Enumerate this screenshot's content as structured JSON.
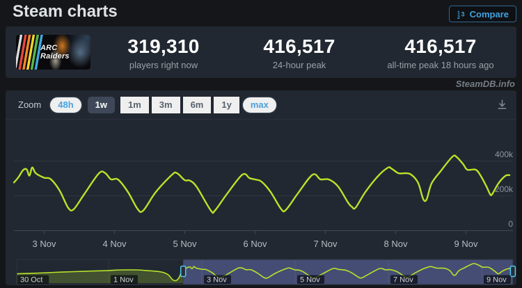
{
  "page": {
    "title": "Steam charts",
    "credit": "SteamDB.info"
  },
  "compare": {
    "label": "Compare",
    "accent_color": "#3fa3e0"
  },
  "stats": {
    "game": "ARC Raiders",
    "game_title_lines": [
      "ARC",
      "Raiders"
    ],
    "items": [
      {
        "value": "319,310",
        "label": "players right now"
      },
      {
        "value": "416,517",
        "label": "24-hour peak"
      },
      {
        "value": "416,517",
        "label": "all-time peak 18 hours ago"
      }
    ]
  },
  "toolbar": {
    "zoom_label": "Zoom",
    "ranges": [
      {
        "label": "48h",
        "state": "link"
      },
      {
        "label": "1w",
        "state": "selected"
      },
      {
        "label": "1m",
        "state": "disabled"
      },
      {
        "label": "3m",
        "state": "disabled"
      },
      {
        "label": "6m",
        "state": "disabled"
      },
      {
        "label": "1y",
        "state": "disabled"
      },
      {
        "label": "max",
        "state": "link"
      }
    ]
  },
  "chart_data": {
    "type": "line",
    "line_color": "#b8e32a",
    "x_unit": "date (November 2025, fractional days)",
    "y_unit": "concurrent players (thousands)",
    "ylim": [
      0,
      450
    ],
    "grid": true,
    "y_ticks": [
      {
        "label": "400k",
        "value": 400
      },
      {
        "label": "200k",
        "value": 200
      },
      {
        "label": "0",
        "value": 0
      }
    ],
    "x_ticks": [
      {
        "label": "3 Nov",
        "day": 3
      },
      {
        "label": "4 Nov",
        "day": 4
      },
      {
        "label": "5 Nov",
        "day": 5
      },
      {
        "label": "6 Nov",
        "day": 6
      },
      {
        "label": "7 Nov",
        "day": 7
      },
      {
        "label": "8 Nov",
        "day": 8
      },
      {
        "label": "9 Nov",
        "day": 9
      }
    ],
    "main_series": [
      [
        2.57,
        277
      ],
      [
        2.63,
        305
      ],
      [
        2.7,
        348
      ],
      [
        2.75,
        352
      ],
      [
        2.79,
        316
      ],
      [
        2.83,
        363
      ],
      [
        2.88,
        330
      ],
      [
        3.0,
        304
      ],
      [
        3.09,
        297
      ],
      [
        3.22,
        230
      ],
      [
        3.34,
        132
      ],
      [
        3.42,
        123
      ],
      [
        3.57,
        210
      ],
      [
        3.78,
        330
      ],
      [
        3.87,
        330
      ],
      [
        3.95,
        295
      ],
      [
        4.05,
        294
      ],
      [
        4.19,
        223
      ],
      [
        4.33,
        124
      ],
      [
        4.41,
        116
      ],
      [
        4.59,
        223
      ],
      [
        4.82,
        322
      ],
      [
        4.89,
        330
      ],
      [
        5.0,
        290
      ],
      [
        5.07,
        288
      ],
      [
        5.17,
        251
      ],
      [
        5.37,
        116
      ],
      [
        5.43,
        116
      ],
      [
        5.6,
        211
      ],
      [
        5.82,
        322
      ],
      [
        5.92,
        302
      ],
      [
        6.0,
        294
      ],
      [
        6.09,
        282
      ],
      [
        6.22,
        223
      ],
      [
        6.37,
        124
      ],
      [
        6.44,
        120
      ],
      [
        6.61,
        215
      ],
      [
        6.82,
        322
      ],
      [
        6.93,
        295
      ],
      [
        7.05,
        294
      ],
      [
        7.18,
        254
      ],
      [
        7.32,
        163
      ],
      [
        7.38,
        136
      ],
      [
        7.43,
        132
      ],
      [
        7.57,
        223
      ],
      [
        7.75,
        314
      ],
      [
        7.89,
        362
      ],
      [
        7.94,
        357
      ],
      [
        8.04,
        330
      ],
      [
        8.14,
        330
      ],
      [
        8.22,
        322
      ],
      [
        8.32,
        274
      ],
      [
        8.39,
        183
      ],
      [
        8.44,
        179
      ],
      [
        8.51,
        271
      ],
      [
        8.64,
        342
      ],
      [
        8.81,
        426
      ],
      [
        8.87,
        422
      ],
      [
        8.96,
        382
      ],
      [
        9.02,
        350
      ],
      [
        9.14,
        350
      ],
      [
        9.21,
        315
      ],
      [
        9.29,
        255
      ],
      [
        9.34,
        212
      ],
      [
        9.37,
        208
      ],
      [
        9.46,
        271
      ],
      [
        9.56,
        315
      ],
      [
        9.62,
        319
      ]
    ],
    "navigator": {
      "x_ticks": [
        {
          "label": "30 Oct",
          "day": -1
        },
        {
          "label": "1 Nov",
          "day": 1
        },
        {
          "label": "3 Nov",
          "day": 3
        },
        {
          "label": "5 Nov",
          "day": 5
        },
        {
          "label": "7 Nov",
          "day": 7
        },
        {
          "label": "9 Nov",
          "day": 9
        }
      ],
      "pre_series": [
        [
          -0.97,
          205
        ],
        [
          -0.5,
          222
        ],
        [
          0.0,
          243
        ],
        [
          0.5,
          261
        ],
        [
          1.0,
          277
        ],
        [
          1.25,
          290
        ],
        [
          1.6,
          290
        ],
        [
          1.9,
          270
        ],
        [
          2.12,
          248
        ],
        [
          2.27,
          190
        ],
        [
          2.38,
          70
        ],
        [
          2.45,
          60
        ],
        [
          2.52,
          135
        ]
      ],
      "selection_days": [
        2.6,
        9.67
      ]
    }
  }
}
